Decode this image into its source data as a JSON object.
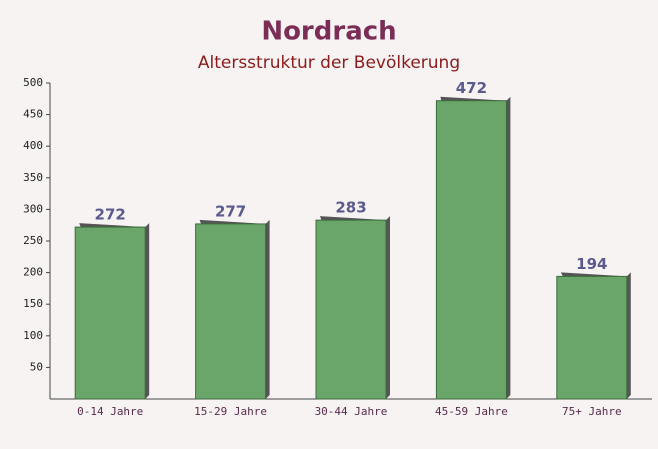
{
  "chart_data": {
    "type": "bar",
    "title": "Nordrach",
    "subtitle": "Altersstruktur der Bevölkerung",
    "categories": [
      "0-14 Jahre",
      "15-29 Jahre",
      "30-44 Jahre",
      "45-59 Jahre",
      "75+ Jahre"
    ],
    "values": [
      272,
      277,
      283,
      472,
      194
    ],
    "color": "#6aa66a",
    "ylim": [
      0,
      500
    ],
    "yticks": [
      50,
      100,
      150,
      200,
      250,
      300,
      350,
      400,
      450,
      500
    ]
  }
}
